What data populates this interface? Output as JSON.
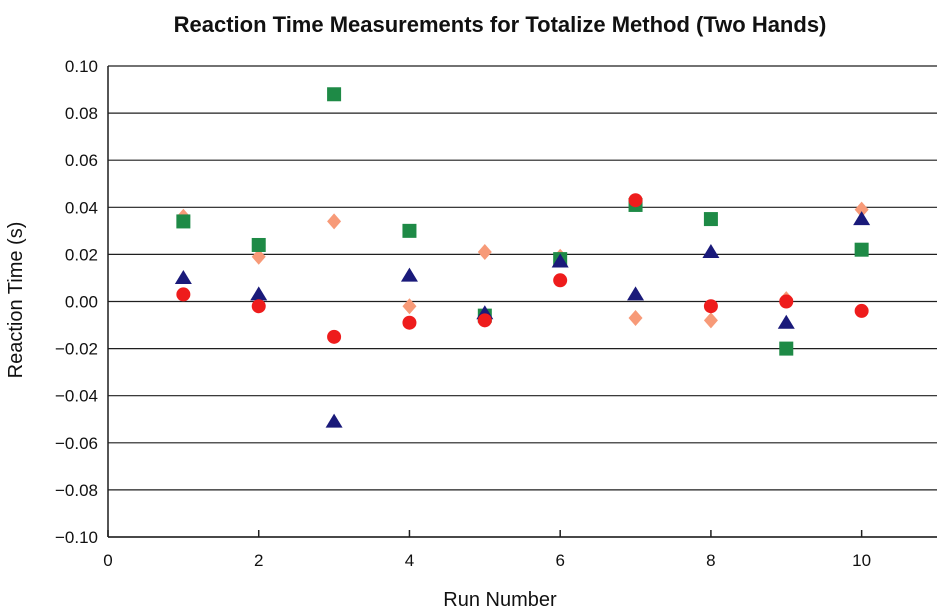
{
  "chart_data": {
    "type": "scatter",
    "title": "Reaction Time Measurements for Totalize Method (Two Hands)",
    "xlabel": "Run Number",
    "ylabel": "Reaction Time (s)",
    "xlim": [
      0,
      11
    ],
    "ylim": [
      -0.1,
      0.1
    ],
    "x_ticks": [
      0,
      2,
      4,
      6,
      8,
      10
    ],
    "x_tick_labels": [
      "0",
      "2",
      "4",
      "6",
      "8",
      "10"
    ],
    "y_ticks": [
      -0.1,
      -0.08,
      -0.06,
      -0.04,
      -0.02,
      0.0,
      0.02,
      0.04,
      0.06,
      0.08,
      0.1
    ],
    "y_tick_labels": [
      "−0.10",
      "−0.08",
      "−0.06",
      "−0.04",
      "−0.02",
      "0.00",
      "0.02",
      "0.04",
      "0.06",
      "0.08",
      "0.10"
    ],
    "grid": "horizontal",
    "legend": "none",
    "series": [
      {
        "marker": "diamond",
        "color": "#f79a78",
        "x": [
          1,
          2,
          3,
          4,
          5,
          6,
          7,
          8,
          9,
          10
        ],
        "y": [
          0.036,
          0.019,
          0.034,
          -0.002,
          0.021,
          0.019,
          -0.007,
          -0.008,
          0.001,
          0.039
        ]
      },
      {
        "marker": "square",
        "color": "#1e8a46",
        "x": [
          1,
          2,
          3,
          4,
          5,
          6,
          7,
          8,
          9,
          10
        ],
        "y": [
          0.034,
          0.024,
          0.088,
          0.03,
          -0.006,
          0.018,
          0.041,
          0.035,
          -0.02,
          0.022
        ]
      },
      {
        "marker": "triangle",
        "color": "#1a1a7a",
        "x": [
          1,
          2,
          3,
          4,
          5,
          6,
          7,
          8,
          9,
          10
        ],
        "y": [
          0.01,
          0.003,
          -0.051,
          0.011,
          -0.005,
          0.017,
          0.003,
          0.021,
          -0.009,
          0.035
        ]
      },
      {
        "marker": "circle",
        "color": "#ee1c1c",
        "x": [
          1,
          2,
          3,
          4,
          5,
          6,
          7,
          8,
          9,
          10
        ],
        "y": [
          0.003,
          -0.002,
          -0.015,
          -0.009,
          -0.008,
          0.009,
          0.043,
          -0.002,
          0.0,
          -0.004
        ]
      }
    ]
  }
}
